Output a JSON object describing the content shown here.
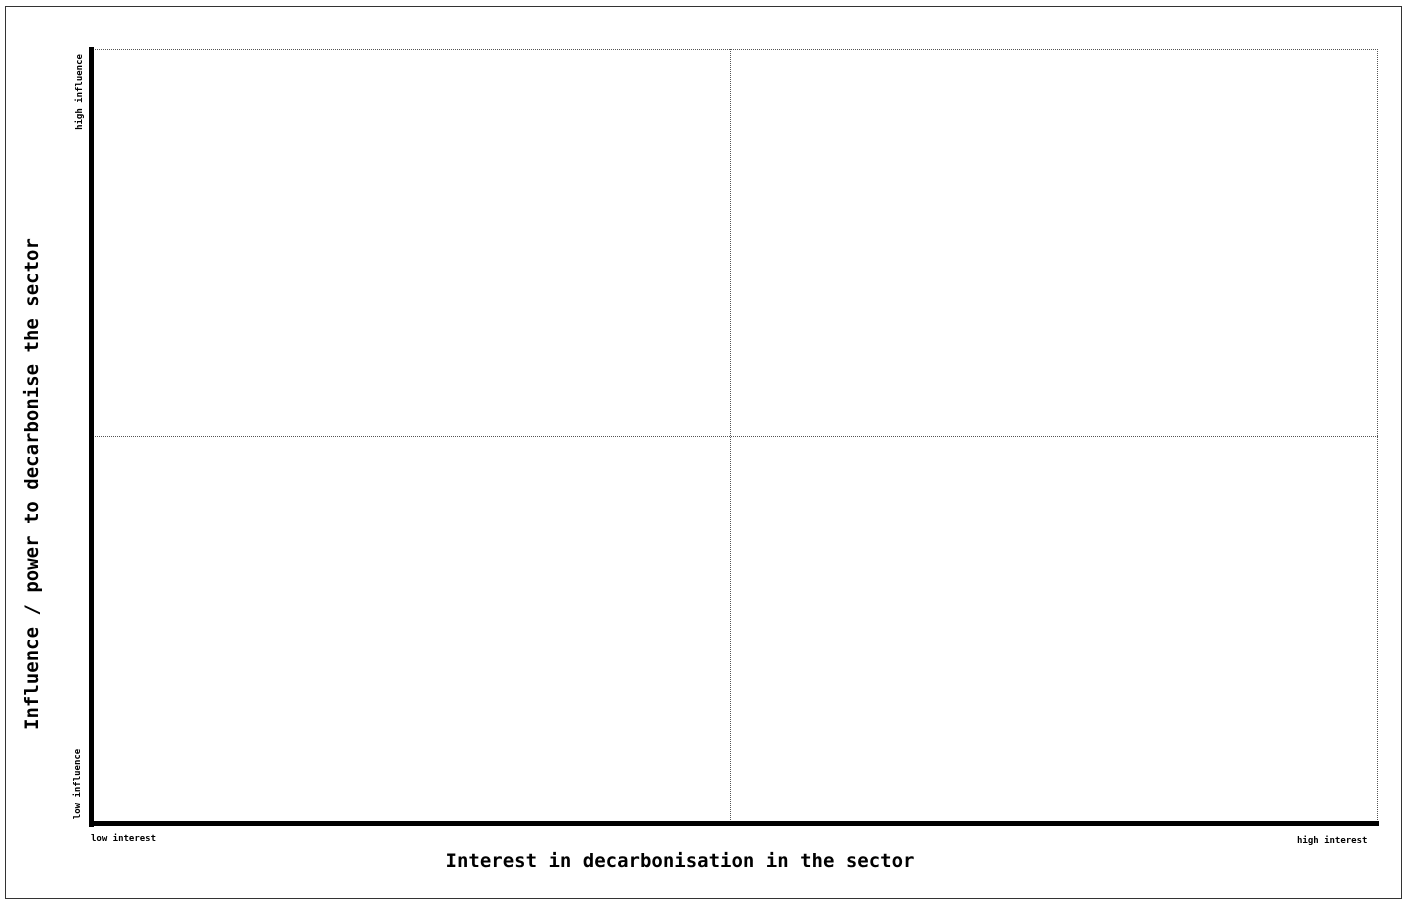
{
  "diagram": {
    "type": "quadrant-matrix",
    "x_axis": {
      "title": "Interest in decarbonisation in the sector",
      "low_label": "low interest",
      "high_label": "high interest"
    },
    "y_axis": {
      "title": "Influence / power to decarbonise the sector",
      "low_label": "low influence",
      "high_label": "high influence"
    },
    "quadrants": 4,
    "gridlines": "dotted"
  }
}
